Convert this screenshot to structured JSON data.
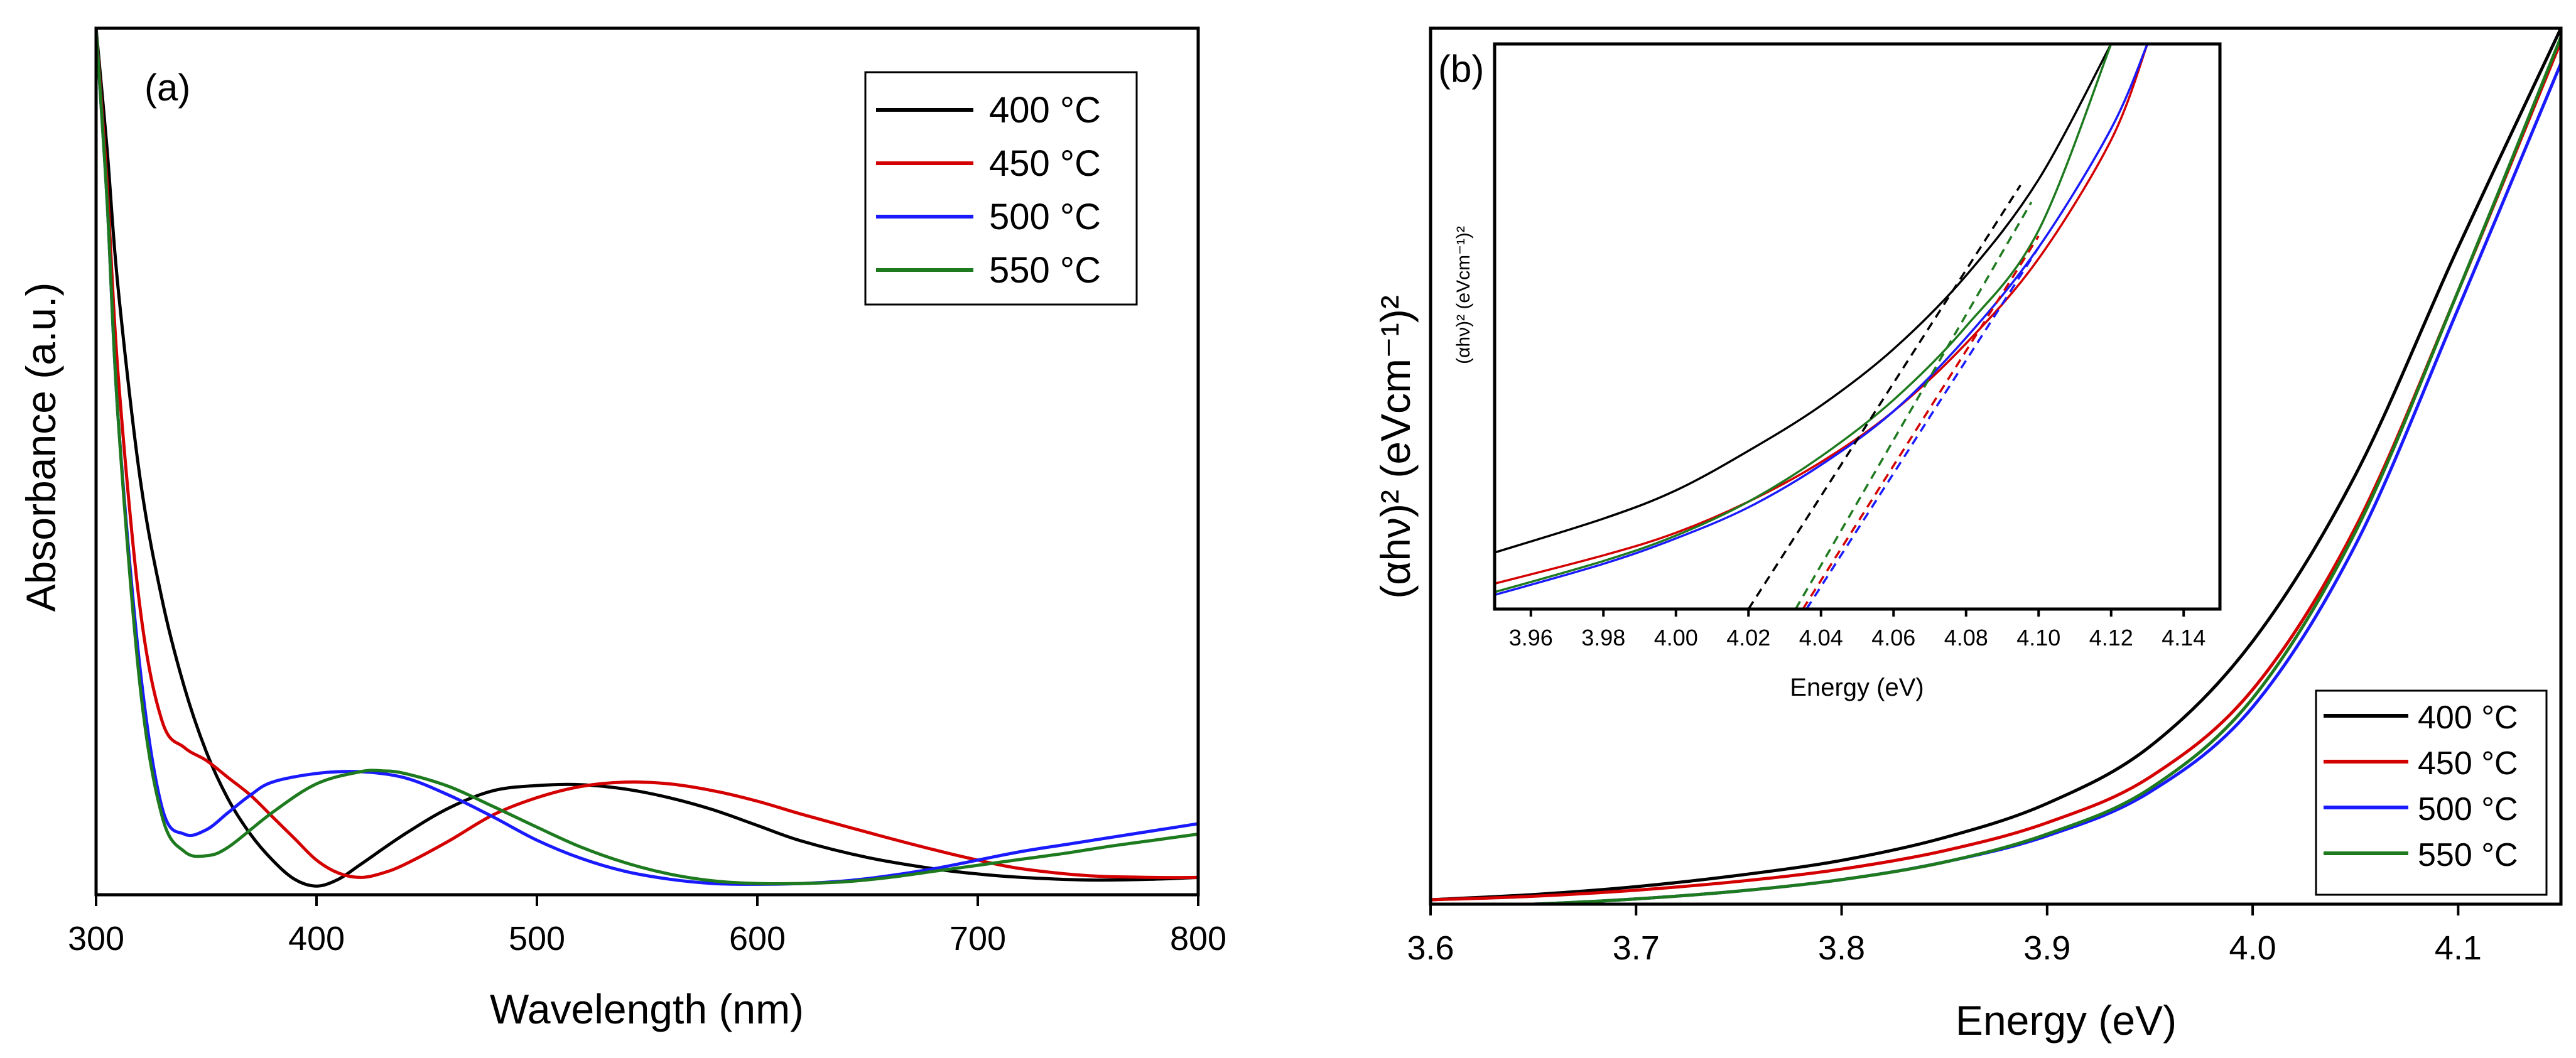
{
  "figure_title": "",
  "chart_data": [
    {
      "type": "line",
      "panel_label": "(a)",
      "title": "",
      "xlabel": "Wavelength (nm)",
      "ylabel": "Absorbance (a.u.)",
      "xlim": [
        300,
        800
      ],
      "ylim": [
        0,
        1
      ],
      "xticks": [
        300,
        400,
        500,
        600,
        700,
        800
      ],
      "xtick_labels": [
        "300",
        "400",
        "500",
        "600",
        "700",
        "800"
      ],
      "yticks_shown": false,
      "grid": false,
      "legend_position": "top-right",
      "series": [
        {
          "name": "400 °C",
          "color": "#000000",
          "x": [
            300,
            305,
            310,
            320,
            330,
            340,
            350,
            360,
            370,
            380,
            390,
            400,
            410,
            420,
            440,
            460,
            480,
            500,
            520,
            540,
            560,
            580,
            600,
            620,
            650,
            680,
            700,
            720,
            750,
            780,
            800
          ],
          "y": [
            1.0,
            0.86,
            0.7,
            0.48,
            0.34,
            0.24,
            0.165,
            0.11,
            0.07,
            0.04,
            0.018,
            0.01,
            0.018,
            0.035,
            0.07,
            0.1,
            0.12,
            0.126,
            0.127,
            0.122,
            0.112,
            0.098,
            0.08,
            0.062,
            0.043,
            0.03,
            0.024,
            0.02,
            0.017,
            0.018,
            0.02
          ]
        },
        {
          "name": "450 °C",
          "color": "#d40000",
          "x": [
            300,
            305,
            310,
            320,
            330,
            340,
            350,
            360,
            370,
            380,
            390,
            400,
            410,
            420,
            430,
            440,
            460,
            480,
            500,
            520,
            540,
            560,
            580,
            600,
            620,
            650,
            680,
            700,
            720,
            750,
            780,
            800
          ],
          "y": [
            1.0,
            0.82,
            0.6,
            0.33,
            0.2,
            0.17,
            0.155,
            0.135,
            0.115,
            0.09,
            0.065,
            0.04,
            0.025,
            0.02,
            0.025,
            0.035,
            0.062,
            0.092,
            0.112,
            0.125,
            0.13,
            0.128,
            0.12,
            0.108,
            0.093,
            0.072,
            0.052,
            0.04,
            0.03,
            0.022,
            0.02,
            0.02
          ]
        },
        {
          "name": "500 °C",
          "color": "#1a1aff",
          "x": [
            300,
            305,
            310,
            320,
            330,
            340,
            350,
            360,
            370,
            380,
            400,
            420,
            440,
            460,
            480,
            500,
            520,
            540,
            560,
            580,
            600,
            620,
            640,
            660,
            680,
            700,
            720,
            740,
            760,
            780,
            800
          ],
          "y": [
            1.0,
            0.8,
            0.55,
            0.26,
            0.1,
            0.07,
            0.075,
            0.095,
            0.115,
            0.13,
            0.14,
            0.142,
            0.135,
            0.115,
            0.09,
            0.063,
            0.042,
            0.027,
            0.018,
            0.013,
            0.012,
            0.013,
            0.016,
            0.022,
            0.03,
            0.04,
            0.05,
            0.058,
            0.066,
            0.074,
            0.082
          ]
        },
        {
          "name": "550 °C",
          "color": "#1e7a1e",
          "x": [
            300,
            305,
            310,
            320,
            330,
            340,
            350,
            360,
            380,
            400,
            420,
            430,
            440,
            460,
            480,
            500,
            520,
            540,
            560,
            580,
            600,
            620,
            640,
            660,
            680,
            700,
            720,
            740,
            760,
            780,
            800
          ],
          "y": [
            1.0,
            0.8,
            0.55,
            0.24,
            0.09,
            0.05,
            0.045,
            0.055,
            0.095,
            0.128,
            0.142,
            0.143,
            0.14,
            0.125,
            0.102,
            0.078,
            0.055,
            0.037,
            0.024,
            0.016,
            0.013,
            0.013,
            0.015,
            0.02,
            0.027,
            0.034,
            0.041,
            0.048,
            0.056,
            0.063,
            0.07
          ]
        }
      ]
    },
    {
      "type": "line",
      "panel_label": "(b)",
      "title": "",
      "xlabel": "Energy (eV)",
      "ylabel": "(αhν)² (eVcm⁻¹)²",
      "xlim": [
        3.6,
        4.15
      ],
      "ylim": [
        0,
        1
      ],
      "xticks": [
        3.6,
        3.7,
        3.8,
        3.9,
        4.0,
        4.1
      ],
      "xtick_labels": [
        "3.6",
        "3.7",
        "3.8",
        "3.9",
        "4.0",
        "4.1"
      ],
      "yticks_shown": false,
      "grid": false,
      "legend_position": "bottom-right",
      "series": [
        {
          "name": "400 °C",
          "color": "#000000",
          "x": [
            3.6,
            3.65,
            3.7,
            3.75,
            3.8,
            3.85,
            3.9,
            3.95,
            4.0,
            4.05,
            4.1,
            4.15
          ],
          "y": [
            0.005,
            0.011,
            0.02,
            0.033,
            0.05,
            0.076,
            0.115,
            0.18,
            0.3,
            0.49,
            0.75,
            1.0
          ]
        },
        {
          "name": "450 °C",
          "color": "#d40000",
          "x": [
            3.6,
            3.65,
            3.7,
            3.75,
            3.8,
            3.85,
            3.9,
            3.95,
            4.0,
            4.05,
            4.1,
            4.15
          ],
          "y": [
            0.005,
            0.009,
            0.016,
            0.026,
            0.04,
            0.061,
            0.093,
            0.145,
            0.245,
            0.43,
            0.7,
            0.985
          ]
        },
        {
          "name": "500 °C",
          "color": "#1a1aff",
          "x": [
            3.6,
            3.65,
            3.7,
            3.75,
            3.8,
            3.85,
            3.9,
            3.95,
            4.0,
            4.05,
            4.1,
            4.15
          ],
          "y": [
            -0.003,
            0.0,
            0.006,
            0.015,
            0.028,
            0.048,
            0.078,
            0.128,
            0.225,
            0.41,
            0.68,
            0.96
          ]
        },
        {
          "name": "550 °C",
          "color": "#1e7a1e",
          "x": [
            3.6,
            3.65,
            3.7,
            3.75,
            3.8,
            3.85,
            3.9,
            3.95,
            4.0,
            4.05,
            4.1,
            4.15
          ],
          "y": [
            -0.003,
            0.0,
            0.006,
            0.015,
            0.028,
            0.048,
            0.08,
            0.132,
            0.235,
            0.425,
            0.7,
            0.99
          ]
        }
      ],
      "inset": {
        "xlabel": "Energy (eV)",
        "ylabel": "(αhν)² (eVcm⁻¹)²",
        "xlim": [
          3.95,
          4.15
        ],
        "ylim": [
          0,
          1
        ],
        "xticks": [
          3.96,
          3.98,
          4.0,
          4.02,
          4.04,
          4.06,
          4.08,
          4.1,
          4.12,
          4.14
        ],
        "xtick_labels": [
          "3.96",
          "3.98",
          "4.00",
          "4.02",
          "4.04",
          "4.06",
          "4.08",
          "4.10",
          "4.12",
          "4.14"
        ],
        "series": [
          {
            "name": "400 °C",
            "color": "#000000",
            "x": [
              3.95,
              3.98,
              4.0,
              4.02,
              4.04,
              4.06,
              4.08,
              4.1,
              4.12
            ],
            "y": [
              0.1,
              0.16,
              0.21,
              0.28,
              0.36,
              0.46,
              0.59,
              0.76,
              1.0
            ]
          },
          {
            "name": "450 °C",
            "color": "#d40000",
            "x": [
              3.95,
              3.98,
              4.0,
              4.02,
              4.04,
              4.06,
              4.08,
              4.1,
              4.12,
              4.13
            ],
            "y": [
              0.045,
              0.095,
              0.135,
              0.19,
              0.26,
              0.35,
              0.47,
              0.62,
              0.83,
              1.0
            ]
          },
          {
            "name": "500 °C",
            "color": "#1a1aff",
            "x": [
              3.95,
              3.98,
              4.0,
              4.02,
              4.04,
              4.06,
              4.08,
              4.1,
              4.12,
              4.13
            ],
            "y": [
              0.025,
              0.08,
              0.125,
              0.18,
              0.255,
              0.35,
              0.48,
              0.64,
              0.85,
              1.0
            ]
          },
          {
            "name": "550 °C",
            "color": "#1e7a1e",
            "x": [
              3.95,
              3.98,
              4.0,
              4.02,
              4.04,
              4.06,
              4.08,
              4.1,
              4.12
            ],
            "y": [
              0.03,
              0.085,
              0.13,
              0.19,
              0.27,
              0.37,
              0.5,
              0.67,
              1.0
            ]
          }
        ],
        "fit_lines": [
          {
            "name": "400 °C fit",
            "color": "#000000",
            "x": [
              4.02,
              4.095
            ],
            "y": [
              0.0,
              0.75
            ]
          },
          {
            "name": "450 °C fit",
            "color": "#d40000",
            "x": [
              4.035,
              4.1
            ],
            "y": [
              0.0,
              0.66
            ]
          },
          {
            "name": "500 °C fit",
            "color": "#1a1aff",
            "x": [
              4.036,
              4.1
            ],
            "y": [
              0.0,
              0.64
            ]
          },
          {
            "name": "550 °C fit",
            "color": "#1e7a1e",
            "x": [
              4.033,
              4.098
            ],
            "y": [
              0.0,
              0.72
            ]
          }
        ]
      }
    }
  ]
}
